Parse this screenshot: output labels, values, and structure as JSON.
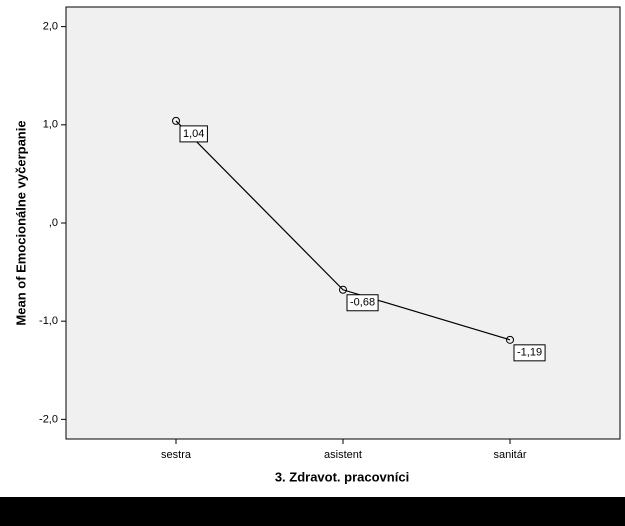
{
  "chart_data": {
    "type": "line",
    "x_label": "3. Zdravot. pracovníci",
    "y_label": "Mean of Emocionálne vyčerpanie",
    "categories": [
      "sestra",
      "asistent",
      "sanitár"
    ],
    "series": [
      {
        "color": "#000000",
        "values": [
          1.04,
          -0.68,
          -1.19
        ],
        "value_labels": [
          "1,04",
          "-0,68",
          "-1,19"
        ]
      }
    ],
    "ylim": [
      -2.2,
      2.2
    ],
    "yticks": [
      {
        "value": -2,
        "label": "-2,0"
      },
      {
        "value": -1,
        "label": "-1,0"
      },
      {
        "value": 0,
        "label": ",0"
      },
      {
        "value": 1,
        "label": "1,0"
      },
      {
        "value": 2,
        "label": "2,0"
      }
    ]
  }
}
